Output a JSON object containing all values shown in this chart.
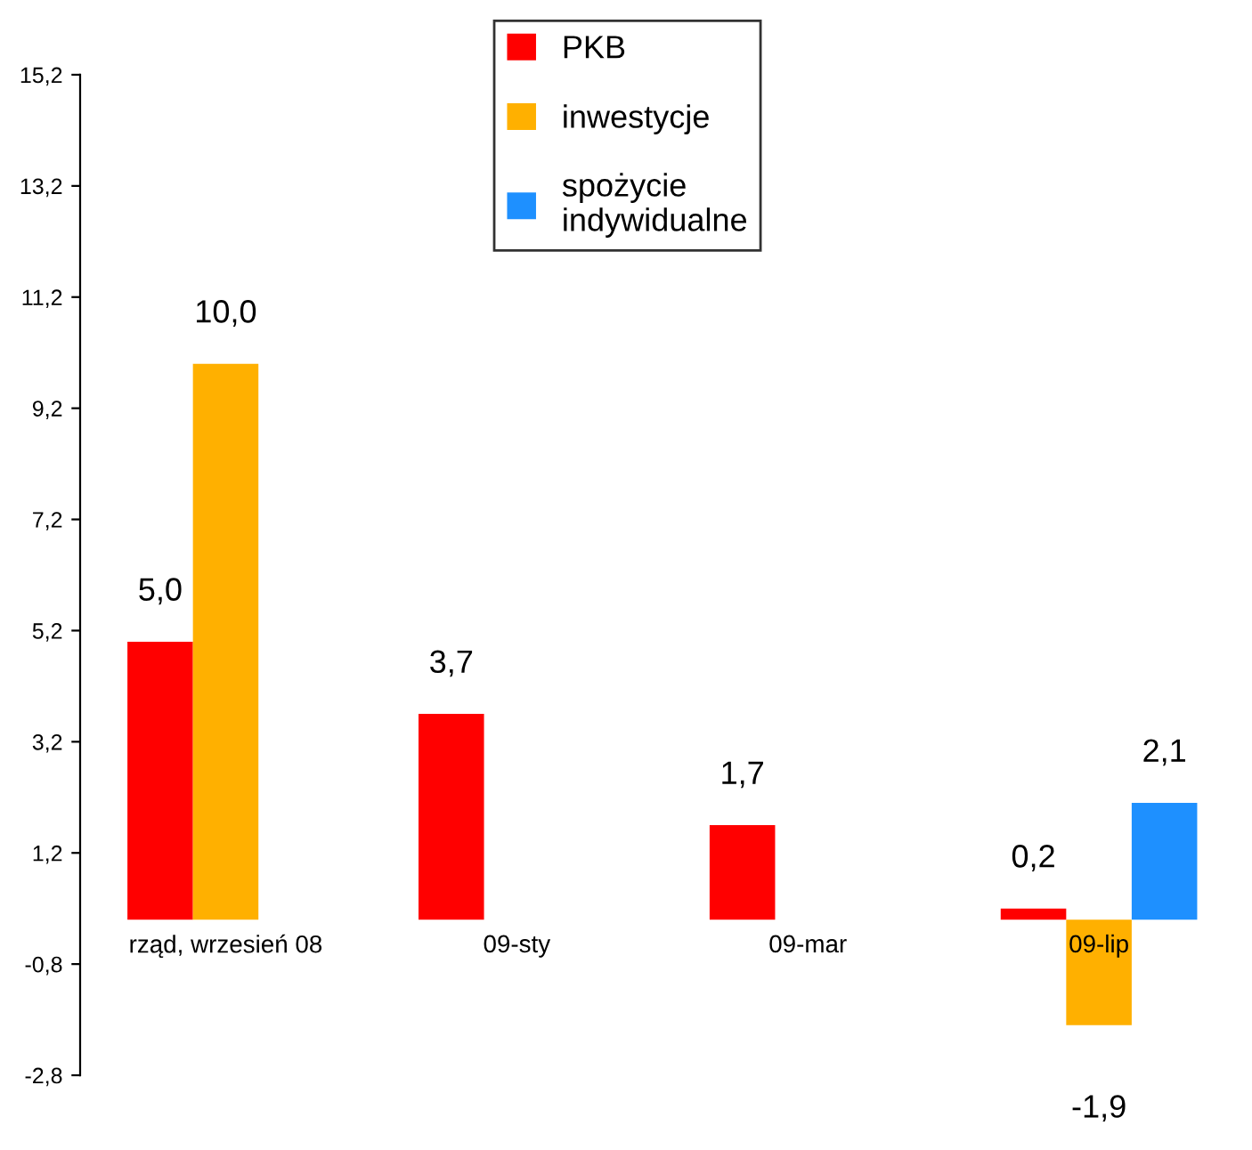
{
  "chart_data": {
    "type": "bar",
    "categories": [
      "rząd, wrzesień 08",
      "09-sty",
      "09-mar",
      "09-lip"
    ],
    "series": [
      {
        "name": "PKB",
        "color": "#ff0000",
        "values": [
          5.0,
          3.7,
          1.7,
          0.2
        ],
        "value_labels": [
          "5,0",
          "3,7",
          "1,7",
          "0,2"
        ]
      },
      {
        "name": "inwestycje",
        "color": "#ffb000",
        "values": [
          10.0,
          null,
          null,
          -1.9
        ],
        "value_labels": [
          "10,0",
          null,
          null,
          "-1,9"
        ]
      },
      {
        "name": "spożycie\nindywidualne",
        "color": "#1e90ff",
        "values": [
          null,
          null,
          null,
          2.1
        ],
        "value_labels": [
          null,
          null,
          null,
          "2,1"
        ]
      }
    ],
    "ylim": [
      -2.8,
      15.2
    ],
    "yticks": [
      {
        "value": -2.8,
        "label": "-2,8"
      },
      {
        "value": -0.8,
        "label": "-0,8"
      },
      {
        "value": 1.2,
        "label": "1,2"
      },
      {
        "value": 3.2,
        "label": "3,2"
      },
      {
        "value": 5.2,
        "label": "5,2"
      },
      {
        "value": 7.2,
        "label": "7,2"
      },
      {
        "value": 9.2,
        "label": "9,2"
      },
      {
        "value": 11.2,
        "label": "11,2"
      },
      {
        "value": 13.2,
        "label": "13,2"
      },
      {
        "value": 15.2,
        "label": "15,2"
      }
    ],
    "grid": false,
    "legend": "top"
  }
}
